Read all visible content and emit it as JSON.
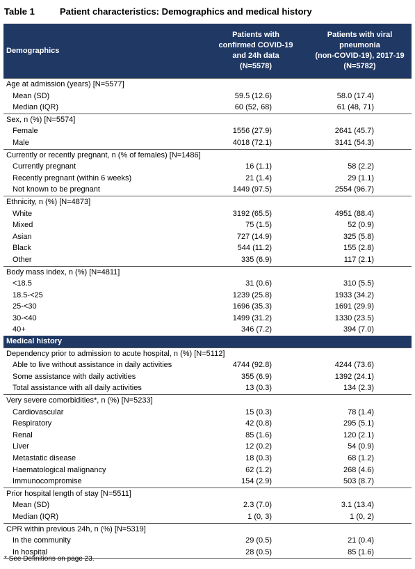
{
  "header": {
    "label": "Table 1",
    "title": "Patient characteristics: Demographics and medical history"
  },
  "table": {
    "columns": [
      [
        "Demographics"
      ],
      [
        "Patients with",
        "confirmed COVID-19",
        "and 24h data",
        "(N=5578)"
      ],
      [
        "Patients with viral",
        "pneumonia",
        "(non-COVID-19), 2017-19",
        "(N=5782)"
      ]
    ],
    "blocks": [
      {
        "title": "Age at admission (years) [N=5577]",
        "rows": [
          [
            "Mean (SD)",
            "59.5 (12.6)",
            "58.0 (17.4)"
          ],
          [
            "Median (IQR)",
            "60 (52, 68)",
            "61 (48, 71)"
          ]
        ]
      },
      {
        "title": "Sex, n (%) [N=5574]",
        "rows": [
          [
            "Female",
            "1556 (27.9)",
            "2641 (45.7)"
          ],
          [
            "Male",
            "4018 (72.1)",
            "3141 (54.3)"
          ]
        ]
      },
      {
        "title": "Currently or recently pregnant, n (% of females) [N=1486]",
        "rows": [
          [
            "Currently pregnant",
            "16 (1.1)",
            "58 (2.2)"
          ],
          [
            "Recently pregnant (within 6 weeks)",
            "21 (1.4)",
            "29 (1.1)"
          ],
          [
            "Not known to be pregnant",
            "1449 (97.5)",
            "2554 (96.7)"
          ]
        ]
      },
      {
        "title": "Ethnicity, n (%) [N=4873]",
        "rows": [
          [
            "White",
            "3192 (65.5)",
            "4951 (88.4)"
          ],
          [
            "Mixed",
            "75 (1.5)",
            "52 (0.9)"
          ],
          [
            "Asian",
            "727 (14.9)",
            "325 (5.8)"
          ],
          [
            "Black",
            "544 (11.2)",
            "155 (2.8)"
          ],
          [
            "Other",
            "335 (6.9)",
            "117 (2.1)"
          ]
        ]
      },
      {
        "title": "Body mass index, n (%) [N=4811]",
        "rows": [
          [
            "<18.5",
            "31 (0.6)",
            "310 (5.5)"
          ],
          [
            "18.5-<25",
            "1239 (25.8)",
            "1933 (34.2)"
          ],
          [
            "25-<30",
            "1696 (35.3)",
            "1691 (29.9)"
          ],
          [
            "30-<40",
            "1499 (31.2)",
            "1330 (23.5)"
          ],
          [
            "40+",
            "346 (7.2)",
            "394 (7.0)"
          ]
        ]
      },
      {
        "band": "Medical history"
      },
      {
        "title": "Dependency prior to admission to acute hospital, n (%) [N=5112]",
        "rows": [
          [
            "Able to live without assistance in daily activities",
            "4744 (92.8)",
            "4244 (73.6)"
          ],
          [
            "Some assistance with daily activities",
            "355 (6.9)",
            "1392 (24.1)"
          ],
          [
            "Total assistance with all daily activities",
            "13 (0.3)",
            "134 (2.3)"
          ]
        ]
      },
      {
        "title": "Very severe comorbidities*, n (%) [N=5233]",
        "rows": [
          [
            "Cardiovascular",
            "15 (0.3)",
            "78 (1.4)"
          ],
          [
            "Respiratory",
            "42 (0.8)",
            "295 (5.1)"
          ],
          [
            "Renal",
            "85 (1.6)",
            "120 (2.1)"
          ],
          [
            "Liver",
            "12 (0.2)",
            "54 (0.9)"
          ],
          [
            "Metastatic disease",
            "18 (0.3)",
            "68 (1.2)"
          ],
          [
            "Haematological malignancy",
            "62 (1.2)",
            "268 (4.6)"
          ],
          [
            "Immunocompromise",
            "154 (2.9)",
            "503 (8.7)"
          ]
        ]
      },
      {
        "title": "Prior hospital length of stay [N=5511]",
        "rows": [
          [
            "Mean (SD)",
            "2.3 (7.0)",
            "3.1 (13.4)"
          ],
          [
            "Median (IQR)",
            "1 (0, 3)",
            "1 (0, 2)"
          ]
        ]
      },
      {
        "title": "CPR within previous 24h, n (%) [N=5319]",
        "rows": [
          [
            "In the community",
            "29 (0.5)",
            "21 (0.4)"
          ],
          [
            "In hospital",
            "28 (0.5)",
            "85 (1.6)"
          ]
        ]
      }
    ]
  },
  "footnote": "* See Definitions on page 23."
}
